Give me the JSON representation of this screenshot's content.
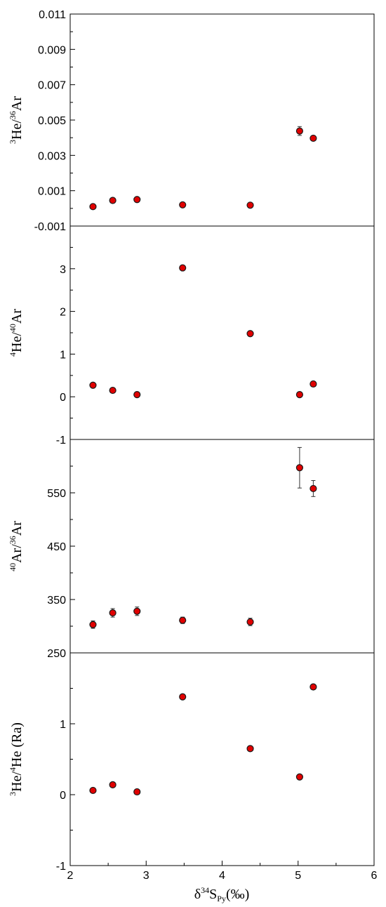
{
  "chart_data": {
    "type": "scatter",
    "x": {
      "label_parts": [
        "δ",
        "34",
        "S",
        "Py",
        "(‰)"
      ],
      "range": [
        2,
        6
      ],
      "ticks": [
        2,
        3,
        4,
        5,
        6
      ],
      "tick_labels": [
        "2",
        "3",
        "4",
        "5",
        "6"
      ]
    },
    "marker_color": "#e00000",
    "marker_edge": "#1a1a1a",
    "panels": [
      {
        "id": "he3-ar36",
        "ylabel_parts": [
          "3",
          "He/",
          "36",
          "Ar"
        ],
        "ylim": [
          -0.001,
          0.011
        ],
        "ticks": [
          -0.001,
          0.001,
          0.003,
          0.005,
          0.007,
          0.009,
          0.011
        ],
        "tick_labels": [
          "-0.001",
          "0.001",
          "0.003",
          "0.005",
          "0.007",
          "0.009",
          "0.011"
        ],
        "minor_ticks": [
          0.0,
          0.002,
          0.004,
          0.006,
          0.008,
          0.01
        ],
        "points": [
          {
            "x": 2.3,
            "y": 0.0001
          },
          {
            "x": 2.56,
            "y": 0.00045
          },
          {
            "x": 2.88,
            "y": 0.0005
          },
          {
            "x": 3.48,
            "y": 0.0002
          },
          {
            "x": 4.37,
            "y": 0.00018
          },
          {
            "x": 5.02,
            "y": 0.00438,
            "err": 0.00025
          },
          {
            "x": 5.2,
            "y": 0.00397
          }
        ]
      },
      {
        "id": "he4-ar40",
        "ylabel_parts": [
          "4",
          "He/",
          "40",
          "Ar"
        ],
        "ylim": [
          -1,
          4
        ],
        "ticks": [
          -1,
          0,
          1,
          2,
          3
        ],
        "tick_labels": [
          "-1",
          "0",
          "1",
          "2",
          "3"
        ],
        "minor_ticks": [
          -0.5,
          0.5,
          1.5,
          2.5,
          3.5
        ],
        "points": [
          {
            "x": 2.3,
            "y": 0.27
          },
          {
            "x": 2.56,
            "y": 0.15
          },
          {
            "x": 2.88,
            "y": 0.05
          },
          {
            "x": 3.48,
            "y": 3.02
          },
          {
            "x": 4.37,
            "y": 1.48
          },
          {
            "x": 5.02,
            "y": 0.05
          },
          {
            "x": 5.2,
            "y": 0.3
          }
        ]
      },
      {
        "id": "ar40-ar36",
        "ylabel_parts": [
          "40",
          "Ar/",
          "36",
          "Ar"
        ],
        "ylim": [
          250,
          650
        ],
        "ticks": [
          250,
          350,
          450,
          550
        ],
        "tick_labels": [
          "250",
          "350",
          "450",
          "550"
        ],
        "minor_ticks": [
          300,
          400,
          500,
          600
        ],
        "points": [
          {
            "x": 2.3,
            "y": 303,
            "err": 7
          },
          {
            "x": 2.56,
            "y": 325,
            "err": 8
          },
          {
            "x": 2.88,
            "y": 328,
            "err": 8
          },
          {
            "x": 3.48,
            "y": 311,
            "err": 6
          },
          {
            "x": 4.37,
            "y": 308,
            "err": 7
          },
          {
            "x": 5.02,
            "y": 597,
            "err": 38
          },
          {
            "x": 5.2,
            "y": 558,
            "err": 15
          }
        ]
      },
      {
        "id": "he3-he4",
        "ylabel_parts": [
          "3",
          "He/",
          "4",
          "He (Ra)"
        ],
        "ylim": [
          -1,
          2
        ],
        "ticks": [
          -1,
          0,
          1
        ],
        "tick_labels": [
          "-1",
          "0",
          "1"
        ],
        "minor_ticks": [
          -0.5,
          0.5,
          1.5
        ],
        "points": [
          {
            "x": 2.3,
            "y": 0.06
          },
          {
            "x": 2.56,
            "y": 0.14
          },
          {
            "x": 2.88,
            "y": 0.04
          },
          {
            "x": 3.48,
            "y": 1.38
          },
          {
            "x": 4.37,
            "y": 0.65
          },
          {
            "x": 5.02,
            "y": 0.25
          },
          {
            "x": 5.2,
            "y": 1.52
          }
        ]
      }
    ]
  }
}
